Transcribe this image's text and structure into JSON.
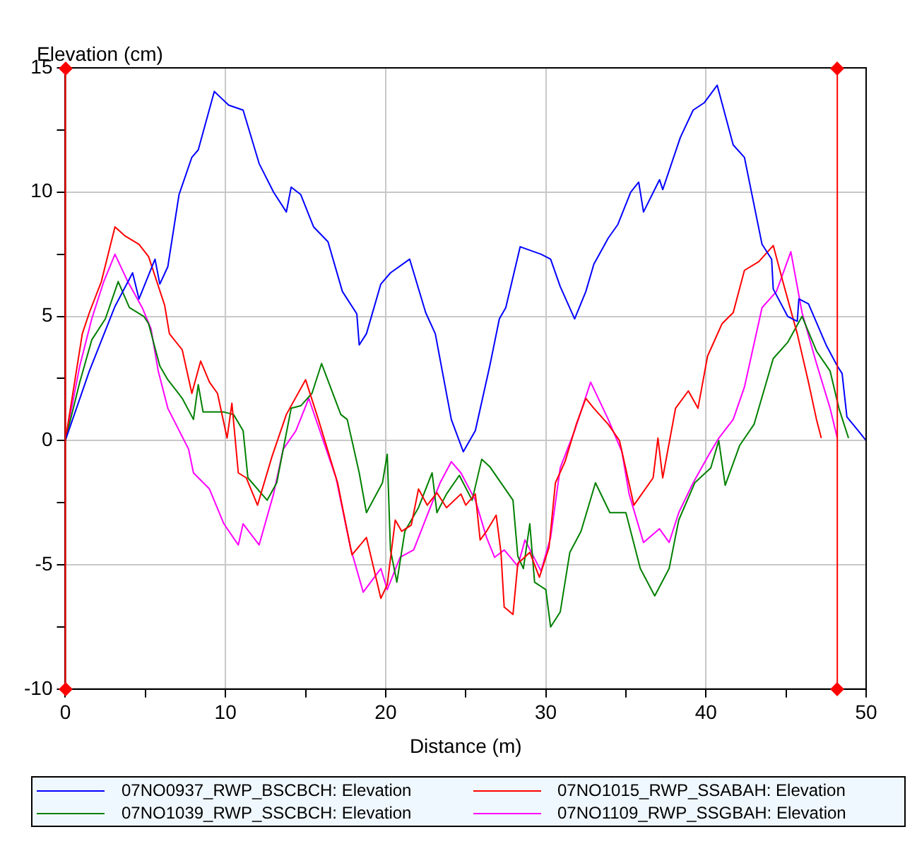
{
  "chart_data": {
    "type": "line",
    "ylabel": "Elevation (cm)",
    "xlabel": "Distance (m)",
    "xlim": [
      0,
      50
    ],
    "xticks": [
      0,
      {
        "value": 5,
        "label": null
      },
      10,
      {
        "value": 15,
        "label": null
      },
      20,
      {
        "value": 25,
        "label": null
      },
      30,
      {
        "value": 35,
        "label": null
      },
      40,
      {
        "value": 45,
        "label": null
      },
      50
    ],
    "ylim": [
      -10,
      15
    ],
    "yticks": [
      -10,
      {
        "value": -7.5,
        "label": null
      },
      -5,
      {
        "value": -2.5,
        "label": null
      },
      0,
      {
        "value": 2.5,
        "label": null
      },
      5,
      {
        "value": 7.5,
        "label": null
      },
      10,
      {
        "value": 12.5,
        "label": null
      },
      15
    ],
    "grid": true,
    "legend": "bottom",
    "marker": "none",
    "line_style": "solid",
    "ref_lines": [
      {
        "axis": "x",
        "value": 0,
        "color": "#ff0000"
      },
      {
        "axis": "x",
        "value": 48.2,
        "color": "#ff0000"
      }
    ],
    "series": [
      {
        "name": "07NO0937_RWP_BSCBCH: Elevation",
        "color": "#0000ff",
        "x": [
          0,
          1.5,
          3.1,
          4.2,
          4.6,
          5.6,
          5.9,
          6.4,
          7.1,
          7.9,
          8.3,
          9.3,
          10.2,
          11.1,
          12.1,
          13.0,
          13.8,
          14.1,
          14.7,
          15.5,
          16.4,
          17.3,
          18.2,
          18.35,
          18.8,
          19.7,
          20.3,
          21.5,
          22.5,
          23.1,
          24.1,
          24.85,
          25.6,
          26.5,
          27.1,
          27.5,
          28.4,
          29.7,
          30.3,
          30.9,
          31.8,
          32.5,
          33.0,
          33.9,
          34.5,
          35.3,
          35.8,
          36.1,
          37.1,
          37.3,
          38.4,
          39.2,
          39.9,
          40.7,
          41.7,
          42.4,
          43.5,
          44.1,
          44.2,
          45.1,
          45.7,
          45.8,
          46.4,
          47.5,
          48.2,
          48.5,
          48.8,
          49.5,
          50
        ],
        "values": [
          0,
          2.8,
          5.4,
          6.75,
          5.7,
          7.3,
          6.3,
          7.0,
          9.9,
          11.4,
          11.7,
          14.05,
          13.5,
          13.3,
          11.15,
          10.0,
          9.2,
          10.2,
          9.9,
          8.6,
          8.0,
          6.0,
          5.1,
          3.85,
          4.3,
          6.3,
          6.75,
          7.3,
          5.15,
          4.3,
          0.85,
          -0.45,
          0.4,
          3.0,
          4.9,
          5.35,
          7.8,
          7.5,
          7.3,
          6.2,
          4.9,
          6.0,
          7.1,
          8.15,
          8.7,
          10.0,
          10.4,
          9.2,
          10.5,
          10.1,
          12.2,
          13.3,
          13.6,
          14.3,
          11.9,
          11.4,
          7.9,
          7.3,
          6.1,
          5.0,
          4.8,
          5.7,
          5.5,
          3.85,
          3.0,
          2.7,
          0.95,
          0.4,
          0
        ]
      },
      {
        "name": "07NO1015_RWP_SSABAH: Elevation",
        "color": "#ff0000",
        "x": [
          0,
          1.06,
          1.5,
          2.25,
          3.1,
          3.7,
          4.6,
          5.2,
          6.2,
          6.5,
          7.3,
          7.9,
          8.45,
          9.0,
          9.5,
          10.1,
          10.4,
          10.8,
          11.3,
          12.0,
          12.9,
          13.8,
          15.0,
          15.8,
          17.0,
          17.9,
          18.8,
          19.5,
          19.7,
          20.1,
          20.6,
          21.0,
          21.6,
          22.05,
          22.6,
          23.2,
          23.8,
          24.7,
          25.0,
          25.6,
          25.9,
          26.3,
          26.9,
          27.2,
          27.4,
          27.95,
          28.25,
          29.0,
          29.6,
          30.2,
          30.6,
          31.2,
          31.9,
          32.5,
          33.0,
          33.9,
          34.6,
          35.5,
          36.7,
          37.0,
          37.3,
          38.1,
          38.9,
          39.5,
          40.1,
          41.0,
          41.7,
          42.4,
          43.3,
          44.2,
          44.8,
          45.7,
          46.4,
          46.9,
          47.2
        ],
        "values": [
          0,
          4.3,
          5.15,
          6.4,
          8.6,
          8.25,
          7.9,
          7.4,
          5.45,
          4.3,
          3.65,
          1.9,
          3.2,
          2.35,
          1.9,
          0.1,
          1.5,
          -1.3,
          -1.5,
          -2.6,
          -0.65,
          1.05,
          2.45,
          0.85,
          -1.7,
          -4.6,
          -3.9,
          -5.8,
          -6.35,
          -5.8,
          -3.2,
          -3.65,
          -3.4,
          -1.95,
          -2.6,
          -2.1,
          -2.7,
          -2.15,
          -2.6,
          -2.15,
          -4.0,
          -3.65,
          -3.0,
          -4.5,
          -6.7,
          -7.0,
          -4.95,
          -4.5,
          -5.5,
          -4.3,
          -1.7,
          -0.85,
          0.65,
          1.7,
          1.3,
          0.65,
          0,
          -2.6,
          -1.5,
          0.1,
          -1.5,
          1.3,
          2.0,
          1.3,
          3.4,
          4.7,
          5.15,
          6.85,
          7.2,
          7.85,
          6.4,
          4.3,
          2.35,
          0.85,
          0.1
        ]
      },
      {
        "name": "07NO1039_RWP_SSCBCH: Elevation",
        "color": "#008000",
        "x": [
          0,
          0.9,
          1.65,
          2.5,
          3.3,
          4.0,
          4.9,
          5.2,
          5.9,
          6.4,
          7.3,
          8.0,
          8.3,
          8.6,
          9.9,
          10.5,
          11.1,
          11.4,
          12.6,
          13.2,
          14.1,
          14.7,
          15.4,
          16.0,
          17.2,
          17.6,
          18.35,
          18.8,
          19.8,
          20.1,
          20.3,
          20.7,
          21.2,
          22.05,
          22.9,
          23.2,
          23.8,
          24.6,
          25.4,
          26.0,
          26.5,
          27.95,
          28.25,
          28.6,
          29.0,
          29.3,
          30.0,
          30.3,
          30.9,
          31.5,
          32.2,
          33.1,
          34.0,
          35.0,
          35.9,
          36.8,
          37.7,
          38.3,
          39.3,
          40.3,
          40.8,
          41.2,
          42.1,
          43.0,
          44.2,
          45.1,
          46.0,
          46.9,
          47.75,
          48.3,
          48.9
        ],
        "values": [
          0,
          2.35,
          4.05,
          4.9,
          6.4,
          5.35,
          5.0,
          4.7,
          3.0,
          2.45,
          1.7,
          0.85,
          2.25,
          1.15,
          1.15,
          1.05,
          0.4,
          -1.5,
          -2.4,
          -1.7,
          1.3,
          1.4,
          1.9,
          3.1,
          1.05,
          0.85,
          -1.3,
          -2.9,
          -1.7,
          -0.55,
          -4.4,
          -5.7,
          -3.65,
          -2.7,
          -1.3,
          -2.9,
          -2.15,
          -1.4,
          -2.4,
          -0.75,
          -1.05,
          -2.4,
          -4.65,
          -5.15,
          -3.35,
          -5.7,
          -6.0,
          -7.5,
          -6.9,
          -4.5,
          -3.65,
          -1.7,
          -2.9,
          -2.9,
          -5.15,
          -6.25,
          -5.15,
          -3.2,
          -1.7,
          -1.1,
          0,
          -1.8,
          -0.2,
          0.65,
          3.3,
          3.95,
          5.0,
          3.6,
          2.8,
          1.3,
          0.1
        ]
      },
      {
        "name": "07NO1109_RWP_SSGBAH: Elevation",
        "color": "#ff00ff",
        "x": [
          0,
          0.9,
          1.65,
          2.4,
          3.1,
          3.9,
          4.8,
          5.35,
          5.8,
          6.4,
          7.7,
          8.0,
          9.0,
          9.9,
          10.8,
          11.1,
          12.1,
          13.0,
          13.6,
          14.4,
          15.2,
          16.1,
          16.9,
          17.8,
          18.6,
          19.7,
          20.1,
          20.9,
          21.75,
          22.6,
          23.4,
          24.1,
          24.7,
          25.6,
          26.3,
          26.8,
          27.4,
          28.25,
          28.7,
          29.7,
          30.3,
          30.9,
          31.8,
          32.8,
          33.9,
          34.75,
          35.2,
          36.1,
          37.1,
          37.7,
          38.3,
          39.2,
          40.2,
          40.8,
          41.7,
          42.4,
          43.5,
          44.4,
          45.3,
          46.0,
          46.9,
          47.75,
          48.2
        ],
        "values": [
          0,
          3.0,
          4.9,
          6.4,
          7.5,
          6.4,
          5.35,
          4.5,
          2.8,
          1.3,
          -0.35,
          -1.3,
          -1.95,
          -3.35,
          -4.2,
          -3.35,
          -4.2,
          -2.15,
          -0.35,
          0.4,
          1.7,
          0,
          -1.5,
          -4.3,
          -6.1,
          -5.15,
          -6.0,
          -4.7,
          -4.4,
          -3.0,
          -1.7,
          -0.85,
          -1.3,
          -2.4,
          -3.9,
          -4.7,
          -4.4,
          -5.05,
          -4.0,
          -5.25,
          -3.9,
          -1.1,
          0.4,
          2.35,
          0.85,
          -0.45,
          -2.15,
          -4.1,
          -3.55,
          -4.1,
          -2.9,
          -1.7,
          -0.55,
          0.1,
          0.85,
          2.15,
          5.35,
          6.0,
          7.6,
          5.15,
          3.1,
          1.3,
          0.1
        ]
      }
    ]
  }
}
